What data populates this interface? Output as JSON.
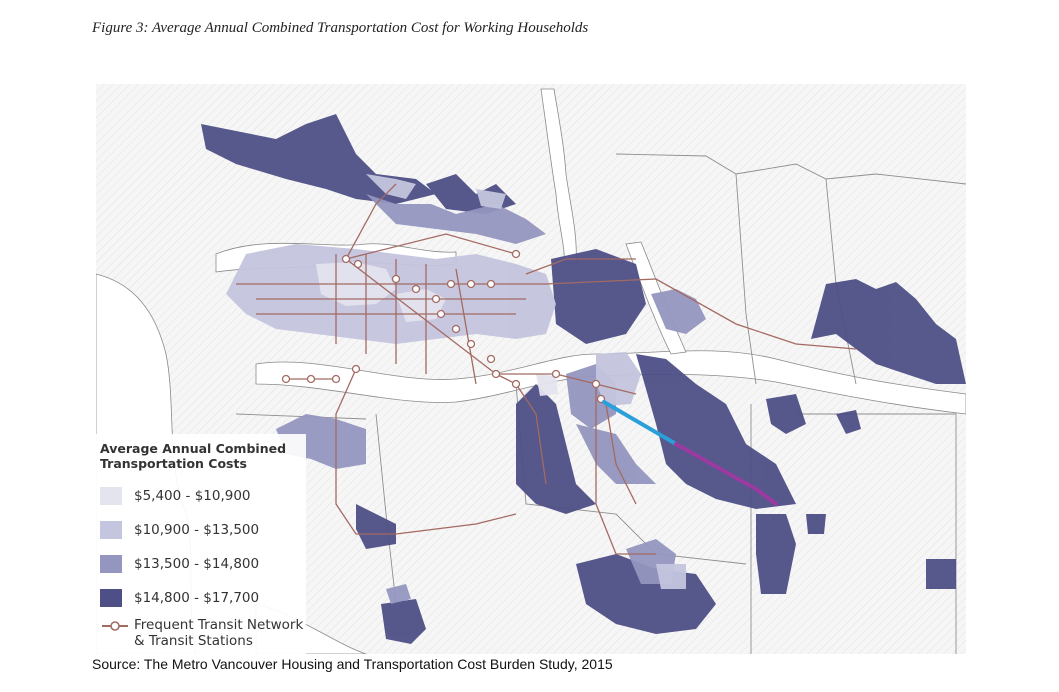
{
  "figure_title": "Figure 3: Average Annual Combined Transportation Cost for Working Households",
  "legend": {
    "title_line1": "Average Annual Combined",
    "title_line2": "Transportation Costs",
    "classes": [
      {
        "label": "$5,400 - $10,900",
        "color": "#e4e4ef"
      },
      {
        "label": "$10,900 - $13,500",
        "color": "#c4c5de"
      },
      {
        "label": "$13,500 - $14,800",
        "color": "#9596bf"
      },
      {
        "label": "$14,800 - $17,700",
        "color": "#4e4f86"
      }
    ],
    "transit_line1": "Frequent Transit Network",
    "transit_line2": "& Transit Stations",
    "transit_color": "#a36a62"
  },
  "map_colors": {
    "land": "#f5f5f5",
    "water": "#ffffff",
    "boundary": "#7f7f7f",
    "extension_blue": "#2b9fd9",
    "extension_purple": "#9b3aa0"
  },
  "source": "Source: The Metro Vancouver Housing and Transportation Cost Burden Study, 2015"
}
